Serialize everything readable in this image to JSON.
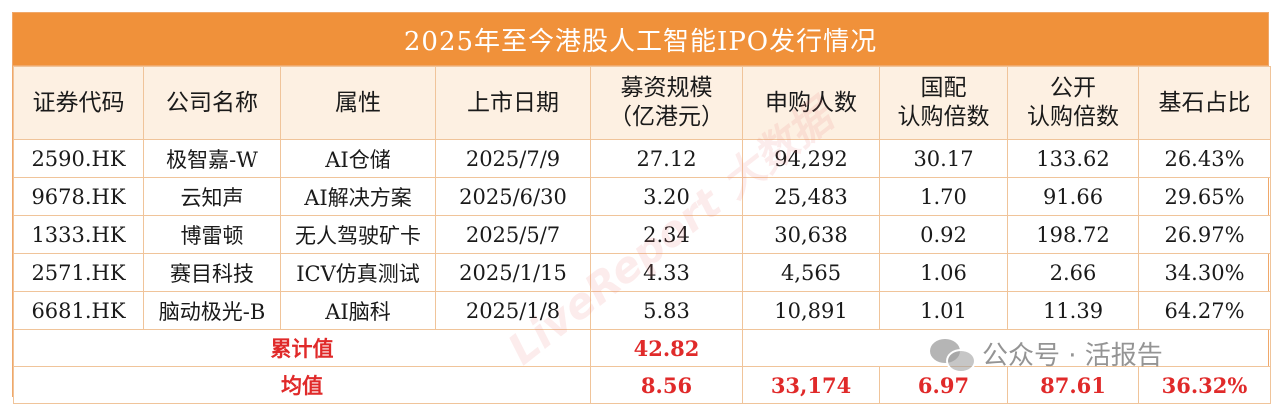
{
  "title": "2025年至今港股人工智能IPO发行情况",
  "headers": {
    "code": "证券代码",
    "name": "公司名称",
    "attr": "属性",
    "date": "上市日期",
    "raise_line1": "募资规模",
    "raise_line2": "（亿港元）",
    "applicants": "申购人数",
    "intl_line1": "国配",
    "intl_line2": "认购倍数",
    "public_line1": "公开",
    "public_line2": "认购倍数",
    "cornerstone": "基石占比"
  },
  "rows": [
    {
      "code": "2590.HK",
      "name": "极智嘉-W",
      "attr": "AI仓储",
      "date": "2025/7/9",
      "raise": "27.12",
      "applicants": "94,292",
      "intl": "30.17",
      "public": "133.62",
      "cornerstone": "26.43%"
    },
    {
      "code": "9678.HK",
      "name": "云知声",
      "attr": "AI解决方案",
      "date": "2025/6/30",
      "raise": "3.20",
      "applicants": "25,483",
      "intl": "1.70",
      "public": "91.66",
      "cornerstone": "29.65%"
    },
    {
      "code": "1333.HK",
      "name": "博雷顿",
      "attr": "无人驾驶矿卡",
      "date": "2025/5/7",
      "raise": "2.34",
      "applicants": "30,638",
      "intl": "0.92",
      "public": "198.72",
      "cornerstone": "26.97%"
    },
    {
      "code": "2571.HK",
      "name": "赛目科技",
      "attr": "ICV仿真测试",
      "date": "2025/1/15",
      "raise": "4.33",
      "applicants": "4,565",
      "intl": "1.06",
      "public": "2.66",
      "cornerstone": "34.30%"
    },
    {
      "code": "6681.HK",
      "name": "脑动极光-B",
      "attr": "AI脑科",
      "date": "2025/1/8",
      "raise": "5.83",
      "applicants": "10,891",
      "intl": "1.01",
      "public": "11.39",
      "cornerstone": "64.27%"
    }
  ],
  "total": {
    "label": "累计值",
    "raise": "42.82"
  },
  "average": {
    "label": "均值",
    "raise": "8.56",
    "applicants": "33,174",
    "intl": "6.97",
    "public": "87.61",
    "cornerstone": "36.32%"
  },
  "watermark": "LiveReport 大数据",
  "wechat_label": "公众号 · 活报告",
  "colors": {
    "header_bg": "#f0913a",
    "accent_red": "#e02a2a",
    "border": "#f0c49a"
  }
}
